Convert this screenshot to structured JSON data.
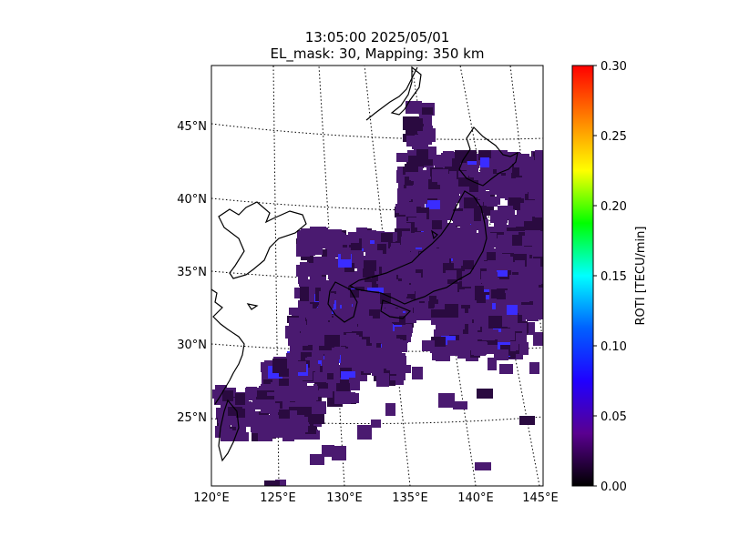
{
  "title_line1": "13:05:00 2025/05/01",
  "title_line2": "EL_mask: 30, Mapping: 350 km",
  "chart_data": {
    "type": "heatmap",
    "title": "13:05:00 2025/05/01 / EL_mask: 30, Mapping: 350 km",
    "lon_range": [
      120,
      145
    ],
    "lat_range": [
      20,
      49
    ],
    "lon_ticks": [
      "120°E",
      "125°E",
      "130°E",
      "135°E",
      "140°E",
      "145°E"
    ],
    "lat_ticks": [
      "25°N",
      "30°N",
      "35°N",
      "40°N",
      "45°N"
    ],
    "graticule": "dotted",
    "colorbar": {
      "label": "ROTI [TECU/min]",
      "min": 0.0,
      "max": 0.3,
      "ticks": [
        "0.00",
        "0.05",
        "0.10",
        "0.15",
        "0.20",
        "0.25",
        "0.30"
      ],
      "colormap": [
        "#000000",
        "#5a0090",
        "#2000ff",
        "#0060ff",
        "#00ffff",
        "#00ff00",
        "#ffff00",
        "#ff8000",
        "#ff0000"
      ]
    },
    "typical_value": 0.03,
    "max_observed_value": 0.06,
    "colors": {
      "base": "#4a1a70",
      "dark": "#2a0a40",
      "high": "#3a2cff"
    }
  }
}
